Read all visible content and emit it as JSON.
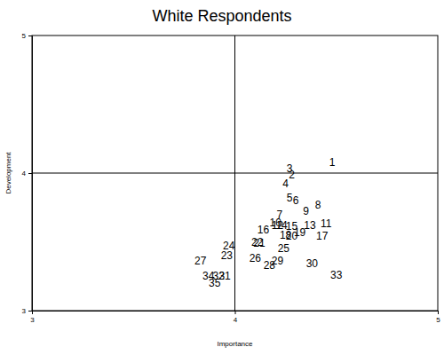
{
  "chart_data": {
    "type": "scatter",
    "title": "White Respondents",
    "x_label": "Importance",
    "y_label": "Development",
    "labels": [
      "1",
      "2",
      "3",
      "4",
      "5",
      "6",
      "7",
      "8",
      "9",
      "10",
      "11",
      "12",
      "13",
      "14",
      "15",
      "16",
      "17",
      "18",
      "19",
      "20",
      "21",
      "22",
      "23",
      "24",
      "25",
      "26",
      "27",
      "28",
      "29",
      "30",
      "31",
      "32",
      "33",
      "34",
      "35"
    ],
    "x": [
      4.48,
      4.28,
      4.27,
      4.25,
      4.27,
      4.3,
      4.22,
      4.41,
      4.35,
      4.2,
      4.45,
      4.21,
      4.37,
      4.23,
      4.28,
      4.14,
      4.43,
      4.25,
      4.32,
      4.28,
      4.12,
      4.11,
      3.96,
      3.97,
      4.24,
      4.1,
      3.83,
      4.17,
      4.21,
      4.38,
      3.95,
      3.92,
      4.5,
      3.87,
      3.9
    ],
    "values": [
      4.08,
      3.99,
      4.03,
      3.92,
      3.82,
      3.8,
      3.7,
      3.77,
      3.72,
      3.64,
      3.63,
      3.62,
      3.62,
      3.62,
      3.61,
      3.59,
      3.54,
      3.55,
      3.57,
      3.54,
      3.49,
      3.5,
      3.4,
      3.47,
      3.45,
      3.38,
      3.36,
      3.33,
      3.36,
      3.34,
      3.25,
      3.25,
      3.26,
      3.25,
      3.2
    ],
    "color": "#000000",
    "xlim": [
      3,
      5
    ],
    "xticks": [
      3,
      4,
      5
    ],
    "ylim": [
      3,
      5
    ],
    "yticks": [
      3,
      4,
      5
    ],
    "vlines": [
      4
    ],
    "hlines": [
      4
    ]
  }
}
